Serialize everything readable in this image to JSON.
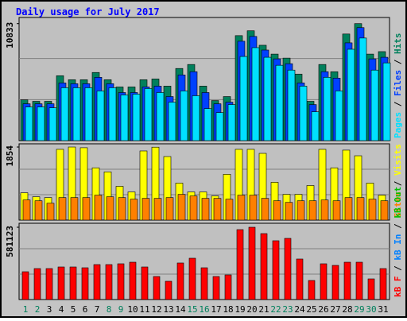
{
  "chart_data": [
    {
      "type": "bar",
      "title": "Daily usage for July 2017",
      "ylim": [
        0,
        11400
      ],
      "yticks": [
        10833
      ],
      "legend_separator": " / ",
      "series": [
        {
          "name": "Hits",
          "color": "#00805c",
          "values": [
            3780,
            3640,
            3640,
            6010,
            5640,
            5640,
            6310,
            5640,
            4970,
            4970,
            5640,
            5710,
            5050,
            6680,
            7050,
            5050,
            3710,
            4080,
            9720,
            10170,
            8830,
            8010,
            7640,
            6160,
            3640,
            7050,
            6380,
            9870,
            10833,
            8010,
            8240
          ]
        },
        {
          "name": "Files",
          "color": "#0040ff",
          "values": [
            3413,
            3413,
            3413,
            5342,
            5268,
            5268,
            5862,
            5268,
            4452,
            4452,
            4971,
            5046,
            4081,
            6084,
            6381,
            4452,
            3413,
            3562,
            9201,
            9646,
            8385,
            7568,
            7123,
            5342,
            3339,
            6381,
            5788,
            9052,
            10462,
            7568,
            7717
          ]
        },
        {
          "name": "Pages",
          "color": "#00e0ff",
          "values": [
            3116,
            3116,
            3042,
            4897,
            4897,
            4897,
            4600,
            4897,
            4229,
            4304,
            4823,
            4452,
            3562,
            4600,
            4155,
            2968,
            2597,
            3339,
            7791,
            8607,
            7717,
            6975,
            6530,
            5046,
            2671,
            5862,
            4600,
            8459,
            9498,
            6530,
            7197
          ]
        }
      ]
    },
    {
      "type": "bar",
      "ylim": [
        0,
        1935
      ],
      "yticks": [
        1854
      ],
      "legend_separator": " / ",
      "series": [
        {
          "name": "Visits",
          "color": "#ffff00",
          "values": [
            693,
            592,
            571,
            1795,
            1854,
            1836,
            1326,
            1224,
            857,
            714,
            1754,
            1850,
            1612,
            938,
            714,
            714,
            612,
            1163,
            1795,
            1795,
            1693,
            959,
            653,
            653,
            877,
            1795,
            1326,
            1775,
            1632,
            938,
            632
          ]
        },
        {
          "name": "Sites",
          "color": "#ff8000",
          "values": [
            510,
            490,
            428,
            571,
            571,
            571,
            632,
            592,
            571,
            530,
            551,
            551,
            571,
            653,
            612,
            551,
            551,
            530,
            632,
            632,
            551,
            490,
            449,
            490,
            490,
            510,
            490,
            571,
            571,
            530,
            490
          ]
        }
      ]
    },
    {
      "type": "bar",
      "ylim": [
        0,
        613000
      ],
      "yticks": [
        581123
      ],
      "legend_separator": " / ",
      "categories": [
        "1",
        "2",
        "3",
        "4",
        "5",
        "6",
        "7",
        "8",
        "9",
        "10",
        "11",
        "12",
        "13",
        "14",
        "15",
        "16",
        "17",
        "18",
        "19",
        "20",
        "21",
        "22",
        "23",
        "24",
        "25",
        "26",
        "27",
        "28",
        "29",
        "30",
        "31"
      ],
      "category_colors": [
        "#00805c",
        "#00805c",
        "#000000",
        "#000000",
        "#000000",
        "#000000",
        "#000000",
        "#00805c",
        "#00805c",
        "#000000",
        "#000000",
        "#000000",
        "#000000",
        "#000000",
        "#00805c",
        "#00805c",
        "#000000",
        "#000000",
        "#000000",
        "#000000",
        "#000000",
        "#00805c",
        "#00805c",
        "#000000",
        "#000000",
        "#000000",
        "#000000",
        "#000000",
        "#00805c",
        "#00805c",
        "#000000"
      ],
      "series": [
        {
          "name": "kB F",
          "color": "#ff0000",
          "values": [
            223500,
            249000,
            249000,
            261800,
            261800,
            255400,
            281000,
            281000,
            287400,
            300100,
            261800,
            185200,
            146900,
            293800,
            332100,
            255400,
            185200,
            198000,
            562000,
            581123,
            530000,
            472600,
            491700,
            325700,
            153300,
            287400,
            274600,
            300100,
            300100,
            166000,
            249000
          ]
        }
      ],
      "extra_legend": [
        {
          "name": "kB Out",
          "color": "#00c000"
        },
        {
          "name": "kB In",
          "color": "#0080ff"
        }
      ]
    }
  ]
}
